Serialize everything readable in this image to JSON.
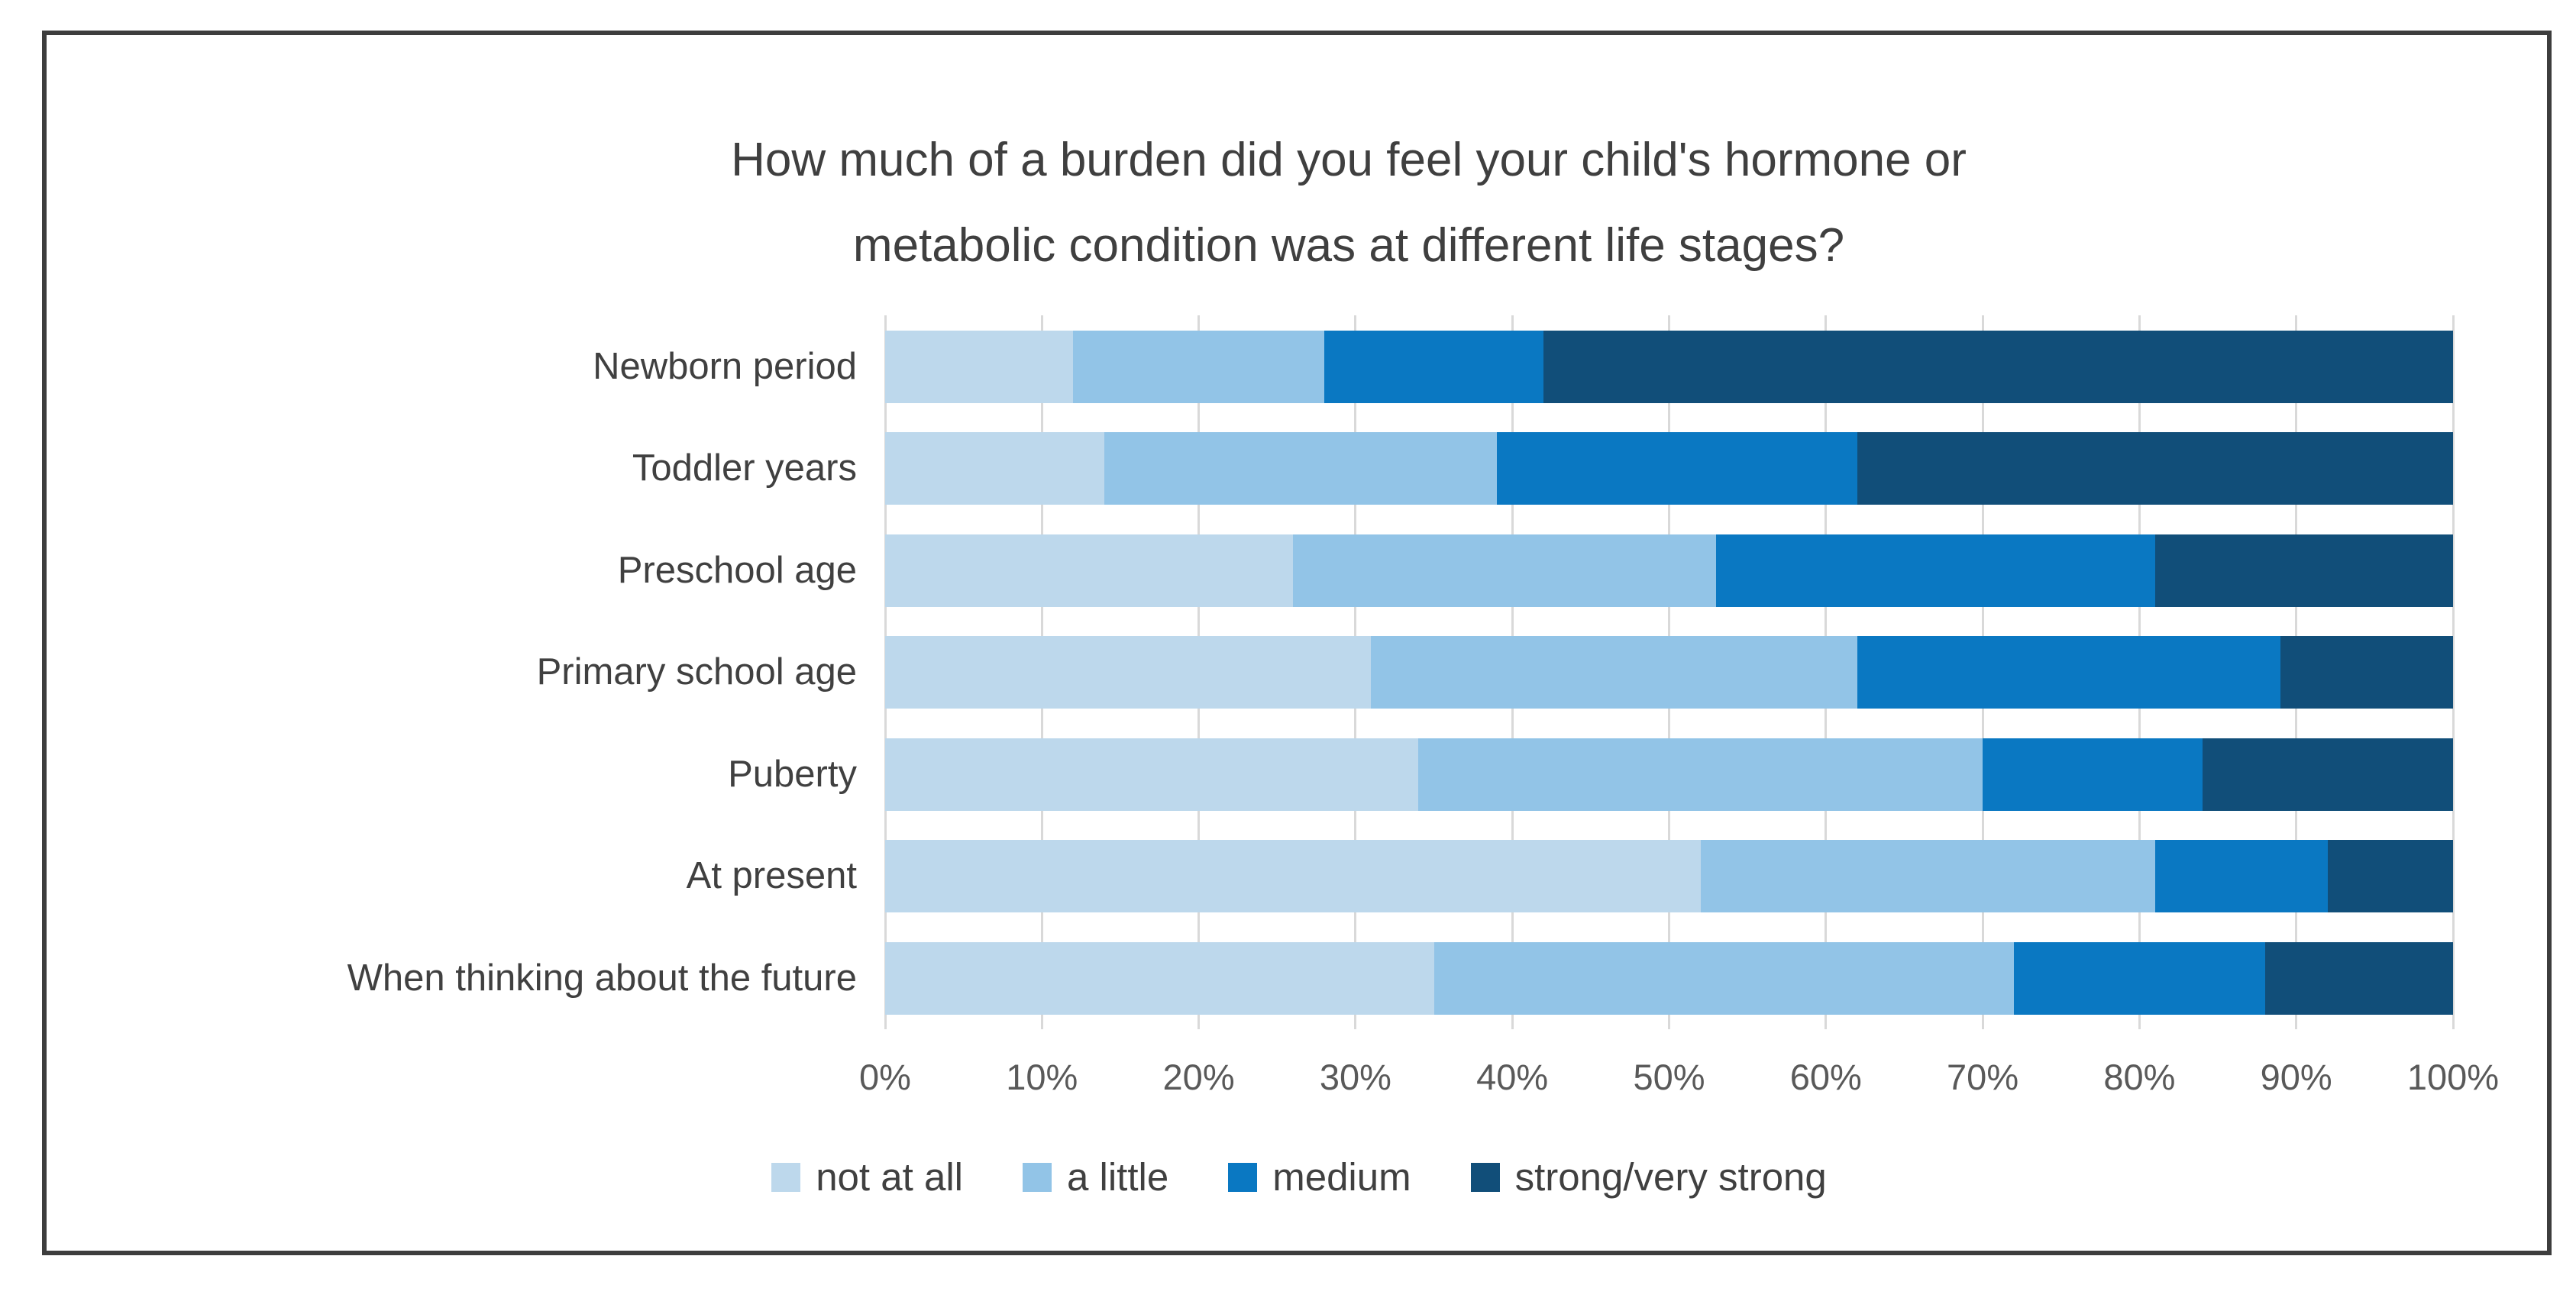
{
  "chart_data": {
    "type": "bar",
    "stacked": true,
    "orientation": "horizontal",
    "title": "How much of a burden did you feel your child's hormone or metabolic condition was at different life stages?",
    "title_lines": [
      "How much of a burden did you feel your child's hormone or",
      "metabolic condition was at different life stages?"
    ],
    "categories": [
      "Newborn period",
      "Toddler years",
      "Preschool age",
      "Primary school age",
      "Puberty",
      "At present",
      "When thinking about the future"
    ],
    "series": [
      {
        "name": "not at all",
        "color": "#BDD8EC",
        "values": [
          12,
          14,
          26,
          31,
          34,
          52,
          35
        ]
      },
      {
        "name": "a little",
        "color": "#92C4E7",
        "values": [
          16,
          25,
          27,
          31,
          36,
          29,
          37
        ]
      },
      {
        "name": "medium",
        "color": "#0A78C2",
        "values": [
          14,
          23,
          28,
          27,
          14,
          11,
          16
        ]
      },
      {
        "name": "strong/very strong",
        "color": "#114E79",
        "values": [
          58,
          38,
          19,
          11,
          16,
          8,
          12
        ]
      }
    ],
    "x_ticks": [
      "0%",
      "10%",
      "20%",
      "30%",
      "40%",
      "50%",
      "60%",
      "70%",
      "80%",
      "90%",
      "100%"
    ],
    "xlim": [
      0,
      100
    ],
    "grid": "vertical",
    "gridline_color": "#d9d9d9",
    "legend_position": "bottom",
    "axis_label_color": "#595959"
  }
}
